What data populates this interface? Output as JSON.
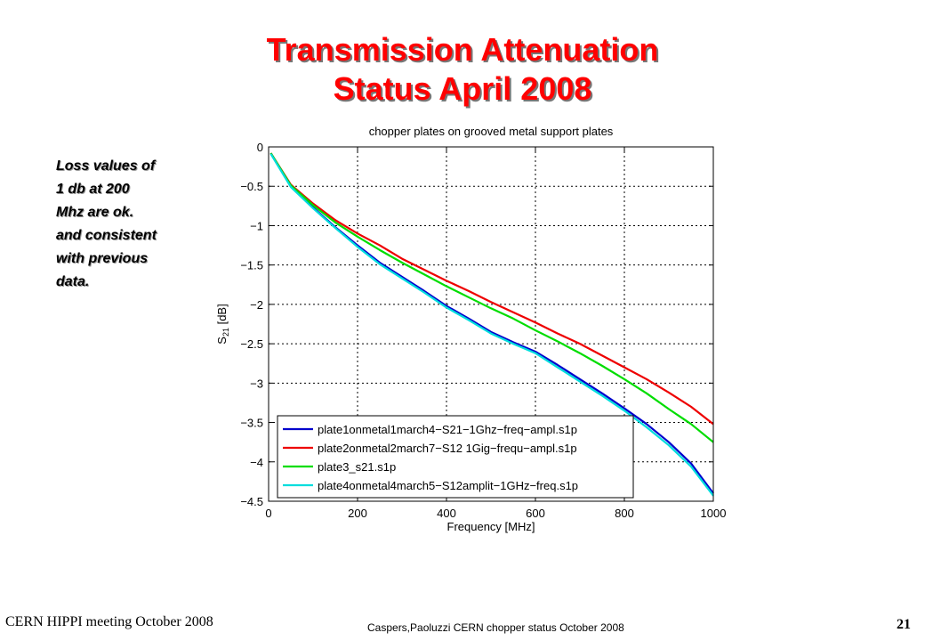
{
  "slide": {
    "title_line1": "Transmission Attenuation",
    "title_line2": "Status April 2008",
    "note_lines": [
      "Loss values of",
      "1 db at 200",
      "Mhz are ok.",
      "and consistent",
      "with previous",
      "data."
    ],
    "footer_left": "CERN HIPPI meeting October 2008",
    "footer_center": "Caspers,Paoluzzi CERN chopper status October 2008",
    "page_number": "21"
  },
  "chart_data": {
    "type": "line",
    "title": "chopper plates on grooved metal support plates",
    "xlabel": "Frequency [MHz]",
    "ylabel_main": "S",
    "ylabel_sub": "21",
    "ylabel_unit": " [dB]",
    "xlim": [
      0,
      1000
    ],
    "ylim": [
      -4.5,
      0
    ],
    "xticks": [
      0,
      200,
      400,
      600,
      800,
      1000
    ],
    "xtick_labels": [
      "0",
      "200",
      "400",
      "600",
      "800",
      "1000"
    ],
    "yticks": [
      0,
      -0.5,
      -1,
      -1.5,
      -2,
      -2.5,
      -3,
      -3.5,
      -4,
      -4.5
    ],
    "ytick_labels": [
      "0",
      "−0.5",
      "−1",
      "−1.5",
      "−2",
      "−2.5",
      "−3",
      "−3.5",
      "−4",
      "−4.5"
    ],
    "grid": true,
    "legend_position": "bottom-right",
    "x": [
      5,
      50,
      100,
      150,
      200,
      250,
      300,
      350,
      400,
      450,
      500,
      550,
      600,
      650,
      700,
      750,
      800,
      850,
      900,
      950,
      1000
    ],
    "series": [
      {
        "name": "plate1onmetal1march4−S21−1Ghz−freq−ampl.s1p",
        "color": "#0000cc",
        "values": [
          -0.08,
          -0.5,
          -0.77,
          -1.02,
          -1.25,
          -1.47,
          -1.65,
          -1.83,
          -2.02,
          -2.18,
          -2.35,
          -2.48,
          -2.6,
          -2.77,
          -2.95,
          -3.13,
          -3.32,
          -3.52,
          -3.75,
          -4.02,
          -4.4
        ]
      },
      {
        "name": "plate2onmetal2march7−S12 1Gig−frequ−ampl.s1p",
        "color": "#ee0000",
        "values": [
          -0.08,
          -0.48,
          -0.72,
          -0.93,
          -1.1,
          -1.25,
          -1.42,
          -1.56,
          -1.7,
          -1.83,
          -1.97,
          -2.1,
          -2.23,
          -2.37,
          -2.5,
          -2.65,
          -2.8,
          -2.95,
          -3.12,
          -3.3,
          -3.52
        ]
      },
      {
        "name": "plate3_s21.s1p",
        "color": "#00dd00",
        "values": [
          -0.08,
          -0.49,
          -0.74,
          -0.96,
          -1.14,
          -1.31,
          -1.47,
          -1.62,
          -1.77,
          -1.91,
          -2.05,
          -2.18,
          -2.33,
          -2.47,
          -2.62,
          -2.78,
          -2.95,
          -3.13,
          -3.33,
          -3.52,
          -3.75
        ]
      },
      {
        "name": "plate4onmetal4march5−S12amplit−1GHz−freq.s1p",
        "color": "#00dddd",
        "values": [
          -0.09,
          -0.51,
          -0.78,
          -1.03,
          -1.27,
          -1.49,
          -1.67,
          -1.85,
          -2.04,
          -2.2,
          -2.37,
          -2.5,
          -2.62,
          -2.8,
          -2.98,
          -3.16,
          -3.35,
          -3.56,
          -3.79,
          -4.06,
          -4.43
        ]
      }
    ]
  }
}
